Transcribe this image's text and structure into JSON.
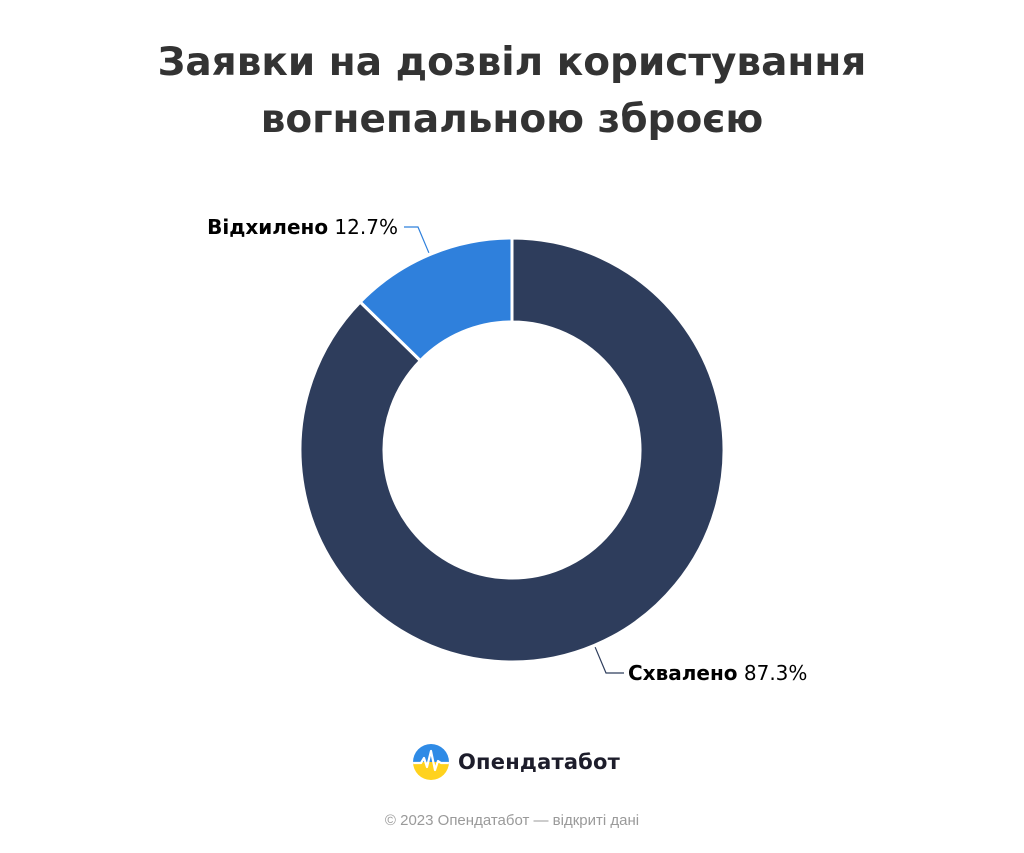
{
  "chart_data": {
    "type": "pie",
    "title": "Заявки на дозвіл користування\nвогнепальною зброєю",
    "donut": true,
    "categories": [
      "Схвалено",
      "Відхилено"
    ],
    "values": [
      87.3,
      12.7
    ],
    "labels": [
      {
        "name": "Схвалено",
        "value_text": "87.3%"
      },
      {
        "name": "Відхилено",
        "value_text": "12.7%"
      }
    ],
    "colors": [
      "#2e3d5c",
      "#2f80dc"
    ],
    "legend": "none"
  },
  "brand": {
    "name": "Опендатабот",
    "logo_icon": "opendatabot-logo-icon"
  },
  "footer": {
    "text": "© 2023 Опендатабот — відкриті дані"
  }
}
